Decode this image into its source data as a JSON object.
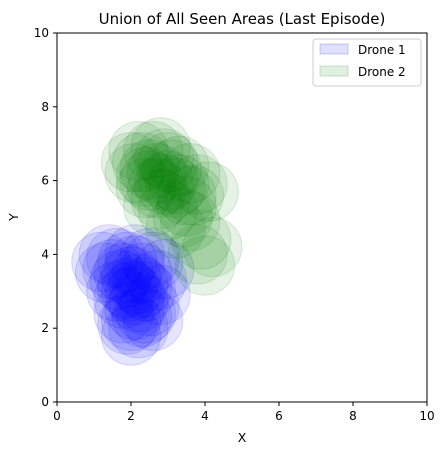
{
  "chart_data": {
    "type": "scatter",
    "title": "Union of All Seen Areas (Last Episode)",
    "xlabel": "X",
    "ylabel": "Y",
    "xlim": [
      0,
      10
    ],
    "ylim": [
      0,
      10
    ],
    "xticks": [
      "0",
      "2",
      "4",
      "6",
      "8",
      "10"
    ],
    "yticks": [
      "0",
      "2",
      "4",
      "6",
      "8",
      "10"
    ],
    "grid": false,
    "legend_position": "top-right",
    "marker": "translucent-circle",
    "view_radius": 0.8,
    "series": [
      {
        "name": "Drone 1",
        "color": "#0000ff",
        "points": [
          [
            2.0,
            3.0
          ],
          [
            2.2,
            3.2
          ],
          [
            1.8,
            2.8
          ],
          [
            2.1,
            2.5
          ],
          [
            2.3,
            3.5
          ],
          [
            1.9,
            3.8
          ],
          [
            2.0,
            2.2
          ],
          [
            2.2,
            2.0
          ],
          [
            1.7,
            3.3
          ],
          [
            2.4,
            3.0
          ],
          [
            1.5,
            3.6
          ],
          [
            1.2,
            3.8
          ],
          [
            1.4,
            4.0
          ],
          [
            2.0,
            1.8
          ],
          [
            2.5,
            2.6
          ],
          [
            1.8,
            2.4
          ],
          [
            2.6,
            3.8
          ],
          [
            2.1,
            4.0
          ],
          [
            1.6,
            3.0
          ],
          [
            2.7,
            3.3
          ],
          [
            2.3,
            2.3
          ],
          [
            1.9,
            2.1
          ],
          [
            2.8,
            2.9
          ],
          [
            2.5,
            3.9
          ],
          [
            1.3,
            3.5
          ],
          [
            2.0,
            3.4
          ],
          [
            2.2,
            2.7
          ],
          [
            1.9,
            3.1
          ],
          [
            2.4,
            2.4
          ],
          [
            2.1,
            3.7
          ],
          [
            1.6,
            3.9
          ],
          [
            2.9,
            3.6
          ],
          [
            2.1,
            2.9
          ],
          [
            2.3,
            3.1
          ],
          [
            1.8,
            3.5
          ],
          [
            2.6,
            2.2
          ]
        ]
      },
      {
        "name": "Drone 2",
        "color": "#008000",
        "points": [
          [
            2.5,
            6.0
          ],
          [
            2.7,
            6.2
          ],
          [
            2.3,
            6.5
          ],
          [
            2.6,
            6.8
          ],
          [
            3.0,
            6.0
          ],
          [
            3.2,
            5.8
          ],
          [
            2.8,
            5.5
          ],
          [
            3.5,
            5.6
          ],
          [
            3.8,
            5.9
          ],
          [
            2.2,
            6.8
          ],
          [
            2.0,
            6.5
          ],
          [
            3.3,
            6.4
          ],
          [
            3.6,
            6.2
          ],
          [
            3.0,
            5.2
          ],
          [
            3.6,
            4.9
          ],
          [
            3.9,
            4.4
          ],
          [
            4.0,
            3.7
          ],
          [
            3.8,
            4.0
          ],
          [
            2.9,
            6.6
          ],
          [
            2.4,
            5.8
          ],
          [
            2.6,
            5.3
          ],
          [
            3.4,
            5.0
          ],
          [
            2.8,
            6.9
          ],
          [
            3.1,
            6.3
          ],
          [
            2.7,
            5.8
          ],
          [
            3.5,
            5.3
          ],
          [
            2.5,
            6.3
          ],
          [
            3.0,
            6.5
          ],
          [
            4.1,
            5.7
          ],
          [
            3.7,
            5.6
          ],
          [
            2.1,
            6.2
          ],
          [
            3.2,
            4.7
          ],
          [
            2.9,
            5.9
          ],
          [
            2.4,
            6.1
          ],
          [
            3.3,
            5.9
          ],
          [
            4.2,
            4.2
          ]
        ]
      }
    ]
  }
}
